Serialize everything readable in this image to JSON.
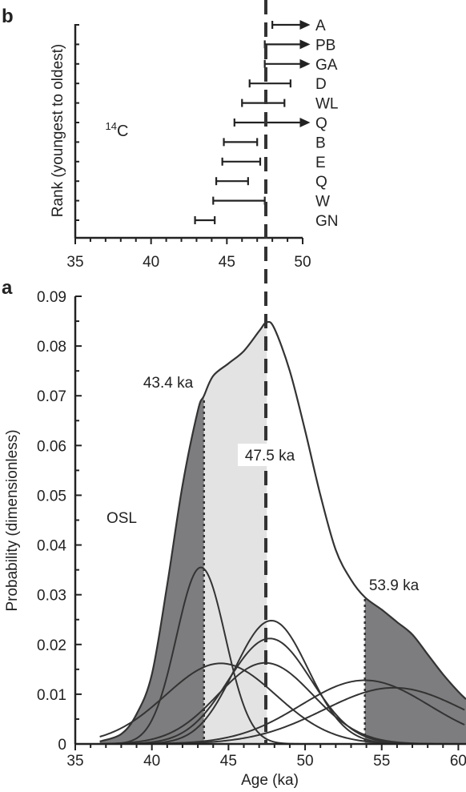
{
  "panels": {
    "b_label": "b",
    "a_label": "a"
  },
  "chart_data": [
    {
      "panel": "b",
      "type": "scatter",
      "ylabel": "Rank (youngest to oldest)",
      "xlim": [
        35,
        50
      ],
      "xticks": [
        "35",
        "40",
        "45",
        "50"
      ],
      "annotation": "14C",
      "reference_line_x": 47.5,
      "series": [
        {
          "label": "A",
          "low": 48.0,
          "high": 50.5,
          "arrow": true
        },
        {
          "label": "PB",
          "low": 47.5,
          "high": 50.5,
          "arrow": true
        },
        {
          "label": "GA",
          "low": 47.5,
          "high": 50.5,
          "arrow": true
        },
        {
          "label": "D",
          "low": 46.5,
          "high": 49.2,
          "arrow": false
        },
        {
          "label": "WL",
          "low": 46.0,
          "high": 48.8,
          "arrow": false
        },
        {
          "label": "Q",
          "low": 45.5,
          "high": 50.5,
          "arrow": true
        },
        {
          "label": "B",
          "low": 44.8,
          "high": 47.0,
          "arrow": false
        },
        {
          "label": "E",
          "low": 44.7,
          "high": 47.2,
          "arrow": false
        },
        {
          "label": "Q",
          "low": 44.3,
          "high": 46.4,
          "arrow": false
        },
        {
          "label": "W",
          "low": 44.1,
          "high": 47.5,
          "arrow": false
        },
        {
          "label": "GN",
          "low": 42.9,
          "high": 44.2,
          "arrow": false
        }
      ]
    },
    {
      "panel": "a",
      "type": "area",
      "xlabel": "Age (ka)",
      "ylabel": "Probability (dimensionless)",
      "xlim": [
        35,
        60.5
      ],
      "ylim": [
        0,
        0.09
      ],
      "xticks": [
        "35",
        "40",
        "45",
        "50",
        "55",
        "60"
      ],
      "yticks": [
        "0",
        "0.01",
        "0.02",
        "0.03",
        "0.04",
        "0.05",
        "0.06",
        "0.07",
        "0.08",
        "0.09"
      ],
      "label": "OSL",
      "markers": [
        {
          "x": 43.4,
          "label": "43.4 ka",
          "style": "dotted"
        },
        {
          "x": 47.5,
          "label": "47.5 ka",
          "style": "dashed"
        },
        {
          "x": 53.9,
          "label": "53.9 ka",
          "style": "dotted"
        }
      ],
      "components": [
        {
          "mu": 43.2,
          "sigma": 1.6,
          "peak": 0.0355
        },
        {
          "mu": 47.8,
          "sigma": 2.4,
          "peak": 0.0248
        },
        {
          "mu": 47.7,
          "sigma": 2.7,
          "peak": 0.0212
        },
        {
          "mu": 47.4,
          "sigma": 3.1,
          "peak": 0.0163
        },
        {
          "mu": 44.5,
          "sigma": 3.6,
          "peak": 0.0162
        },
        {
          "mu": 53.9,
          "sigma": 4.2,
          "peak": 0.0128
        },
        {
          "mu": 55.8,
          "sigma": 4.6,
          "peak": 0.0113
        }
      ],
      "total_curve": [
        [
          36.6,
          0.0005
        ],
        [
          38,
          0.002
        ],
        [
          39,
          0.006
        ],
        [
          40,
          0.014
        ],
        [
          41,
          0.032
        ],
        [
          42,
          0.052
        ],
        [
          43.0,
          0.067
        ],
        [
          43.4,
          0.07
        ],
        [
          44,
          0.074
        ],
        [
          45,
          0.0765
        ],
        [
          46,
          0.079
        ],
        [
          47,
          0.083
        ],
        [
          47.5,
          0.0848
        ],
        [
          48,
          0.0835
        ],
        [
          49,
          0.075
        ],
        [
          50,
          0.063
        ],
        [
          51,
          0.05
        ],
        [
          52,
          0.039
        ],
        [
          53,
          0.033
        ],
        [
          53.9,
          0.0295
        ],
        [
          55,
          0.027
        ],
        [
          56,
          0.0245
        ],
        [
          57,
          0.022
        ],
        [
          58,
          0.018
        ],
        [
          59,
          0.014
        ],
        [
          60,
          0.0105
        ],
        [
          60.5,
          0.009
        ]
      ]
    }
  ]
}
